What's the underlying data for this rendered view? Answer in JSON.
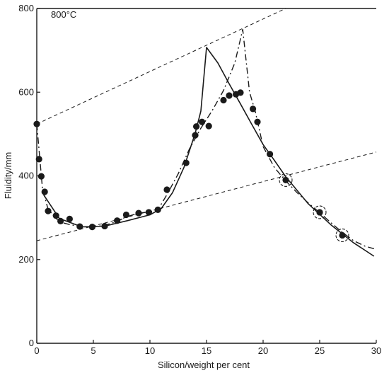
{
  "chart_data": {
    "type": "scatter",
    "title": "",
    "annotation": "800°C",
    "xlabel": "Silicon/weight per cent",
    "ylabel": "Fluidity/mm",
    "xlim": [
      0,
      30
    ],
    "ylim": [
      0,
      800
    ],
    "x_ticks": [
      0,
      5,
      10,
      15,
      20,
      25,
      30
    ],
    "y_ticks": [
      0,
      200,
      400,
      600,
      800
    ],
    "grid": false,
    "series": [
      {
        "style": "points",
        "x": [
          0,
          0.2,
          0.4,
          0.7,
          1.0,
          1.7,
          2.1,
          2.9,
          3.8,
          4.9,
          6.0,
          7.1,
          7.9,
          9.0,
          9.9,
          10.7,
          11.5,
          13.2,
          14.0,
          14.1,
          14.6,
          15.2,
          16.5,
          17.0,
          17.6,
          18.0,
          19.1,
          19.5,
          20.6,
          22.0,
          25.0,
          27.0
        ],
        "y": [
          524,
          440,
          399,
          362,
          316,
          305,
          292,
          297,
          279,
          278,
          280,
          293,
          307,
          311,
          313,
          319,
          367,
          431,
          497,
          518,
          529,
          519,
          581,
          592,
          595,
          599,
          560,
          529,
          452,
          390,
          313,
          258
        ]
      },
      {
        "style": "solid",
        "x": [
          0.6,
          2,
          4,
          6,
          8,
          10,
          11,
          12,
          13,
          14,
          14.5,
          15,
          16,
          17,
          18,
          19,
          20,
          21,
          22,
          24,
          26,
          28,
          29.8
        ],
        "y": [
          355,
          298,
          278,
          280,
          293,
          307,
          322,
          360,
          420,
          502,
          555,
          707,
          670,
          620,
          572,
          523,
          475,
          437,
          398,
          333,
          283,
          240,
          208
        ]
      },
      {
        "style": "dashdot",
        "x": [
          0,
          0.5,
          1,
          2,
          3,
          4,
          5,
          6,
          7,
          8,
          9,
          10,
          10.7,
          11.5,
          12.5,
          13.5,
          14.5,
          15.5,
          16.5,
          17.5,
          18.2,
          18.8,
          19.3,
          20,
          21,
          22,
          23,
          24,
          25,
          26,
          27,
          28,
          29,
          29.8
        ],
        "y": [
          524,
          370,
          320,
          290,
          283,
          279,
          278,
          282,
          290,
          303,
          311,
          314,
          319,
          355,
          405,
          465,
          514,
          556,
          604,
          670,
          750,
          600,
          555,
          470,
          420,
          388,
          360,
          335,
          312,
          288,
          265,
          245,
          232,
          226
        ]
      },
      {
        "style": "guide",
        "x": [
          0,
          22
        ],
        "y": [
          524,
          800
        ]
      },
      {
        "style": "guide",
        "x": [
          0,
          30
        ],
        "y": [
          245,
          457
        ]
      }
    ],
    "ringed_points": [
      {
        "x": 22.0,
        "y": 390
      },
      {
        "x": 25.0,
        "y": 313
      },
      {
        "x": 27.0,
        "y": 258
      }
    ]
  }
}
